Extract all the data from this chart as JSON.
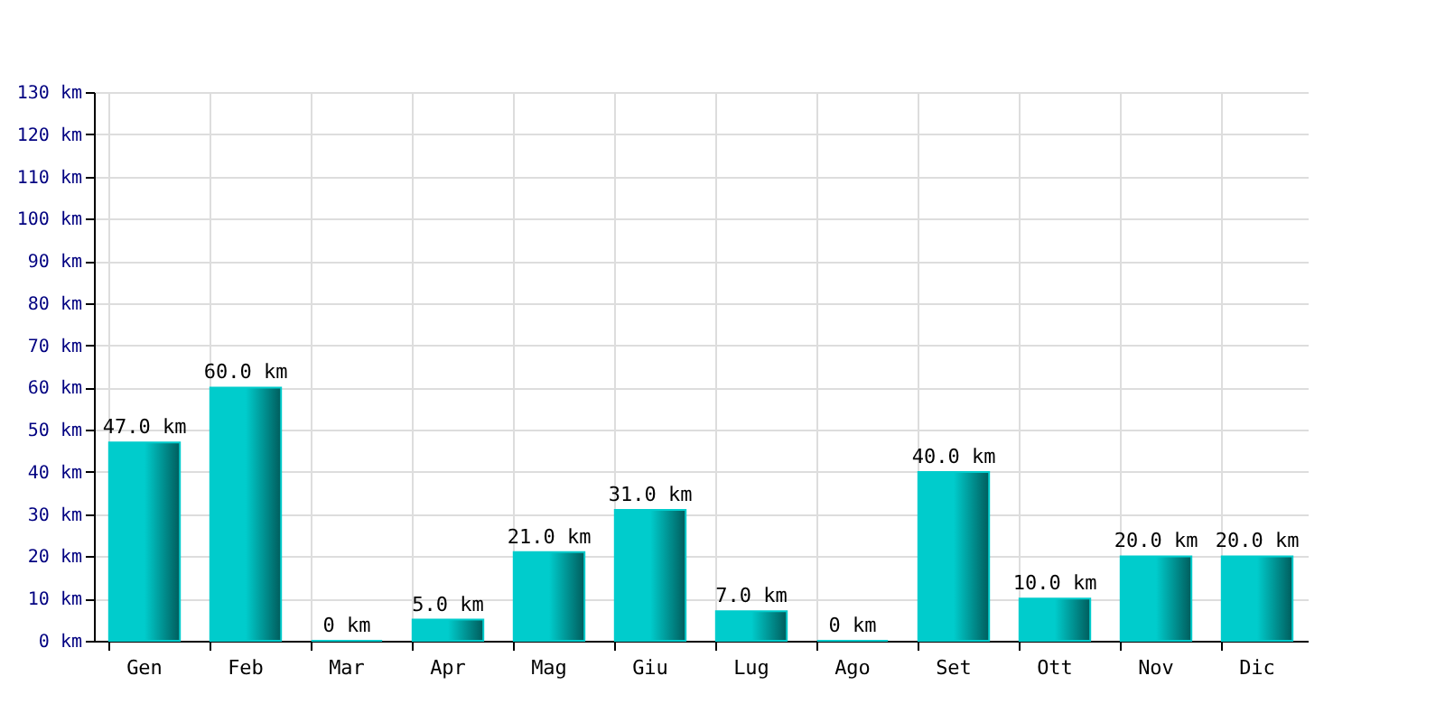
{
  "chart_data": {
    "type": "bar",
    "categories": [
      "Gen",
      "Feb",
      "Mar",
      "Apr",
      "Mag",
      "Giu",
      "Lug",
      "Ago",
      "Set",
      "Ott",
      "Nov",
      "Dic"
    ],
    "values": [
      47,
      60,
      0,
      5,
      21,
      31,
      7,
      0,
      40,
      10,
      20,
      20
    ],
    "value_labels": [
      "47.0 km",
      "60.0 km",
      "0 km",
      "5.0 km",
      "21.0 km",
      "31.0 km",
      "7.0 km",
      "0 km",
      "40.0 km",
      "10.0 km",
      "20.0 km",
      "20.0 km"
    ],
    "color": "#00cccc",
    "ylim": [
      0,
      130
    ],
    "yticks": [
      {
        "value": 0,
        "label": "0 km"
      },
      {
        "value": 10,
        "label": "10 km"
      },
      {
        "value": 20,
        "label": "20 km"
      },
      {
        "value": 30,
        "label": "30 km"
      },
      {
        "value": 40,
        "label": "40 km"
      },
      {
        "value": 50,
        "label": "50 km"
      },
      {
        "value": 60,
        "label": "60 km"
      },
      {
        "value": 70,
        "label": "70 km"
      },
      {
        "value": 80,
        "label": "80 km"
      },
      {
        "value": 90,
        "label": "90 km"
      },
      {
        "value": 100,
        "label": "100 km"
      },
      {
        "value": 110,
        "label": "110 km"
      },
      {
        "value": 120,
        "label": "120 km"
      },
      {
        "value": 130,
        "label": "130 km"
      }
    ],
    "grid": true
  }
}
